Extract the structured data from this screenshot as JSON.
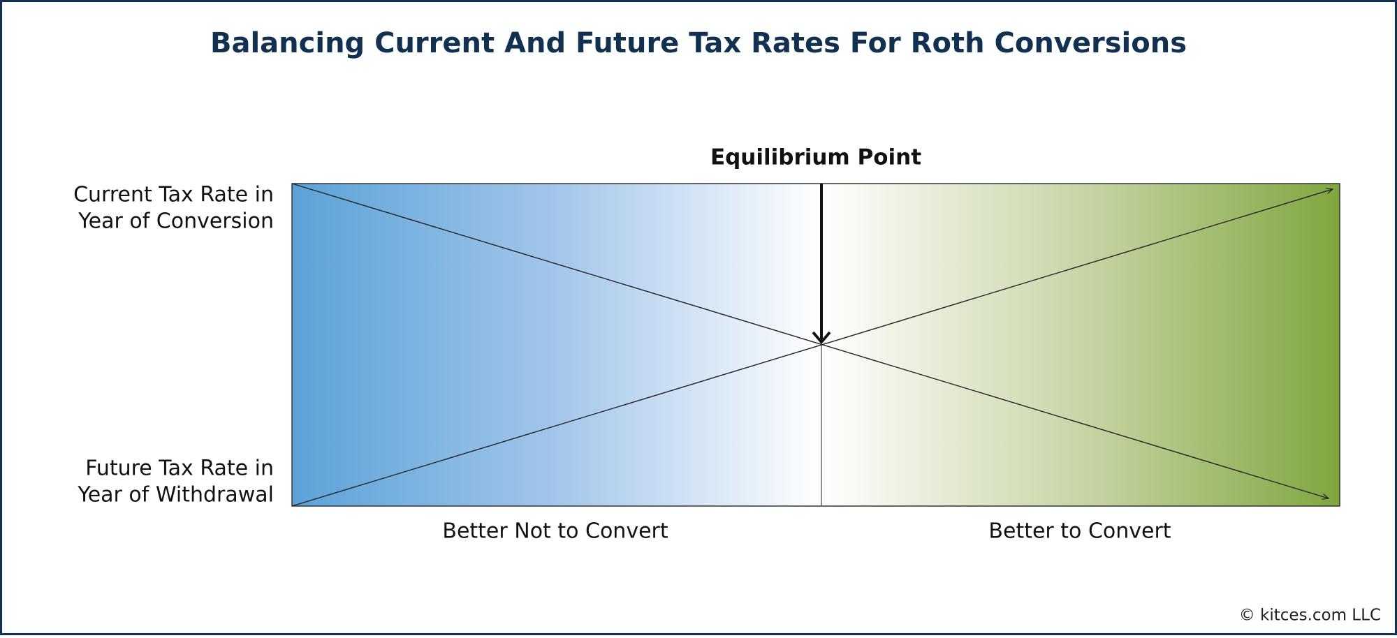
{
  "header": {
    "title": "Balancing Current And Future Tax Rates For Roth Conversions"
  },
  "diagram": {
    "equilibrium_label": "Equilibrium Point",
    "left_labels": {
      "top": [
        "Current Tax Rate in",
        "Year of Conversion"
      ],
      "bottom": [
        "Future Tax Rate in",
        "Year of Withdrawal"
      ]
    },
    "bottom_labels": {
      "left": "Better Not to Convert",
      "right": "Better to Convert"
    }
  },
  "footer": {
    "credit": "© kitces.com LLC"
  }
}
